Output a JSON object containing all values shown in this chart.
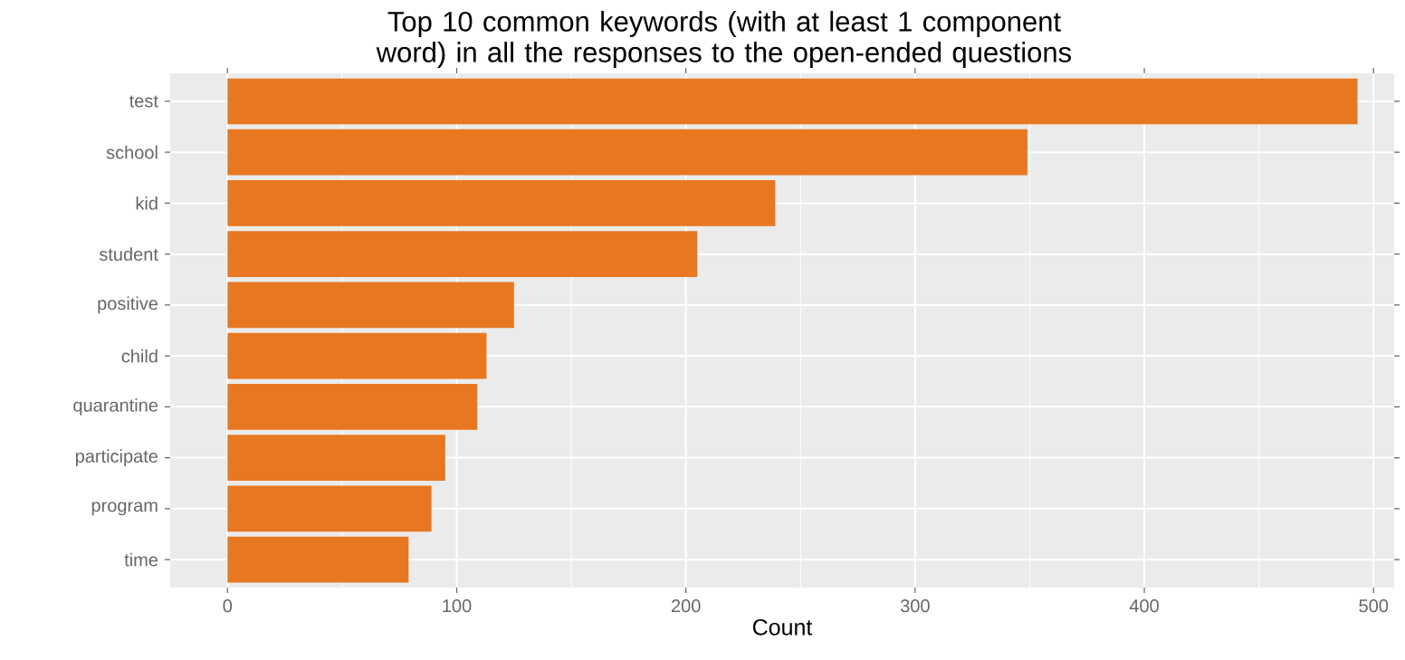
{
  "chart_data": {
    "type": "bar",
    "orientation": "horizontal",
    "title": "Top 10 common keywords (with at least 1 component word) in all the responses to the open-ended questions",
    "xlabel": "Count",
    "categories": [
      "test",
      "school",
      "kid",
      "student",
      "positive",
      "child",
      "quarantine",
      "participate",
      "program",
      "time"
    ],
    "values": [
      493,
      349,
      239,
      205,
      125,
      113,
      109,
      95,
      89,
      79
    ],
    "color": "#e87722",
    "xlim": [
      -25,
      509
    ],
    "xticks": [
      0,
      100,
      200,
      300,
      400,
      500
    ],
    "grid": true
  }
}
